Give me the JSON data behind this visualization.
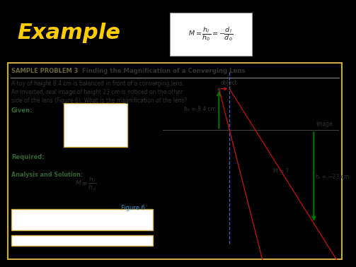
{
  "bg_top": "#000000",
  "bg_bottom": "#f5f0d0",
  "example_text": "Example",
  "example_color": "#ffcc00",
  "example_fontsize": 22,
  "formula_box_color": "#ffffff",
  "formula_box_edgecolor": "#aaaaaa",
  "sample_problem_label": "SAMPLE PROBLEM 3",
  "sample_problem_title": "  Finding the Magnification of a Converging Lens",
  "problem_text_line1": "A toy of height 8.4 cm is balanced in front of a converging lens.",
  "problem_text_line2": "An inverted, real image of height 23 cm is noticed on the other",
  "problem_text_line3": "side of the lens (Figure 6). What is the magnification of the lens?",
  "given_label": "Given:",
  "required_label": "Required:",
  "analysis_label": "Analysis and Solution:",
  "figure_label": "Figure 6",
  "figure_label_color": "#3399cc",
  "green_color": "#007700",
  "red_color": "#cc1111",
  "blue_dashed_color": "#4466cc",
  "object_label": "object",
  "image_label": "image",
  "ho_label": "hₒ = 8.4 cm",
  "hi_label": "hᵢ = −23 cm",
  "M_label": "M = ?",
  "panel_border_color": "#ccaa44",
  "panel_bg": "#f5f0d0",
  "text_color": "#333333",
  "green_label_color": "#336633"
}
